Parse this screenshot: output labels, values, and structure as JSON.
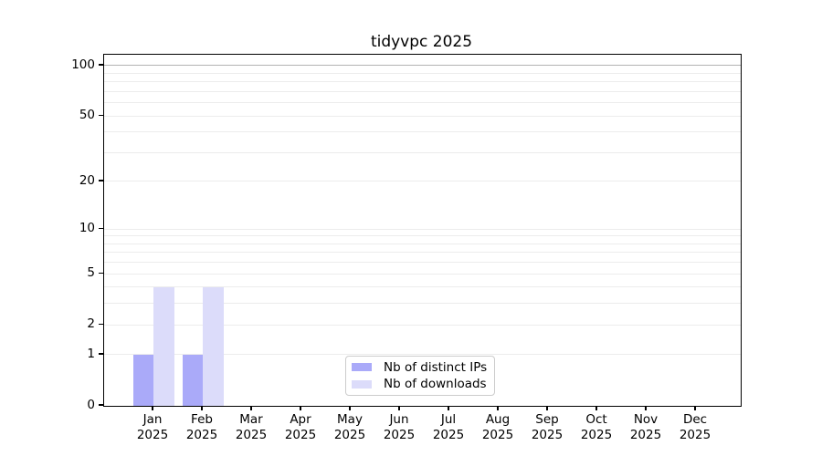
{
  "title": "tidyvpc 2025",
  "chart_data": {
    "type": "bar",
    "title": "tidyvpc 2025",
    "yscale": "log1p",
    "categories": [
      "Jan",
      "Feb",
      "Mar",
      "Apr",
      "May",
      "Jun",
      "Jul",
      "Aug",
      "Sep",
      "Oct",
      "Nov",
      "Dec"
    ],
    "category_sublabel": "2025",
    "series": [
      {
        "name": "Nb of distinct IPs",
        "color": "#aaaaf9",
        "values": [
          1,
          1,
          0,
          0,
          0,
          0,
          0,
          0,
          0,
          0,
          0,
          0
        ]
      },
      {
        "name": "Nb of downloads",
        "color": "#dcdcfa",
        "values": [
          4,
          4,
          0,
          0,
          0,
          0,
          0,
          0,
          0,
          0,
          0,
          0
        ]
      }
    ],
    "yticks": [
      0,
      1,
      2,
      5,
      10,
      20,
      50,
      100
    ],
    "gridlines_minor": [
      1,
      2,
      3,
      4,
      5,
      6,
      7,
      8,
      9,
      10,
      20,
      30,
      40,
      50,
      60,
      70,
      80,
      90
    ],
    "gridlines_major": [
      100
    ],
    "grid_minor_color": "#ececec",
    "grid_major_color": "#b3b3b3",
    "ylim": [
      0,
      130
    ],
    "legend_position": "bottom-center",
    "grid": true
  }
}
